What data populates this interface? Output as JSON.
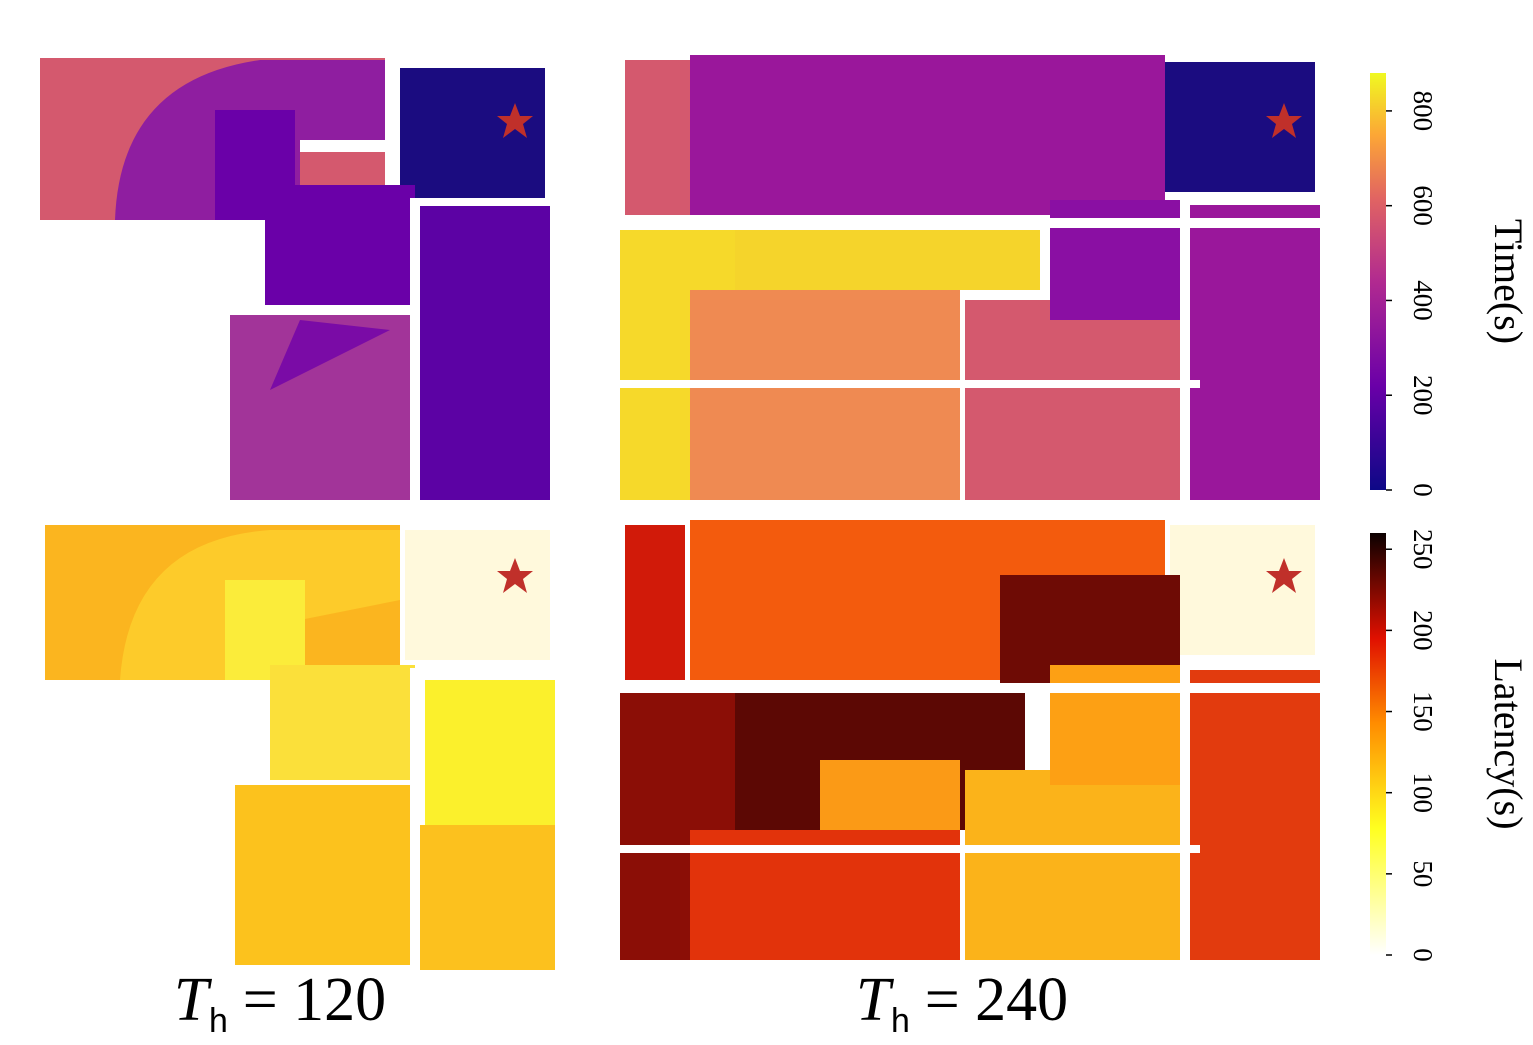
{
  "chart_data": [
    {
      "type": "colorbar",
      "label": "Time(s)",
      "colormap": "plasma",
      "ylim": [
        0,
        880
      ],
      "yticks": [
        0,
        200,
        400,
        600,
        800
      ]
    },
    {
      "type": "colorbar",
      "label": "Latency(s)",
      "colormap": "hot",
      "ylim": [
        0,
        260
      ],
      "yticks": [
        0,
        50,
        100,
        150,
        200,
        250
      ]
    }
  ],
  "captions": [
    {
      "symbol": "T",
      "subscript": "h",
      "relation": "= 120"
    },
    {
      "symbol": "T",
      "subscript": "h",
      "relation": "= 240"
    }
  ]
}
